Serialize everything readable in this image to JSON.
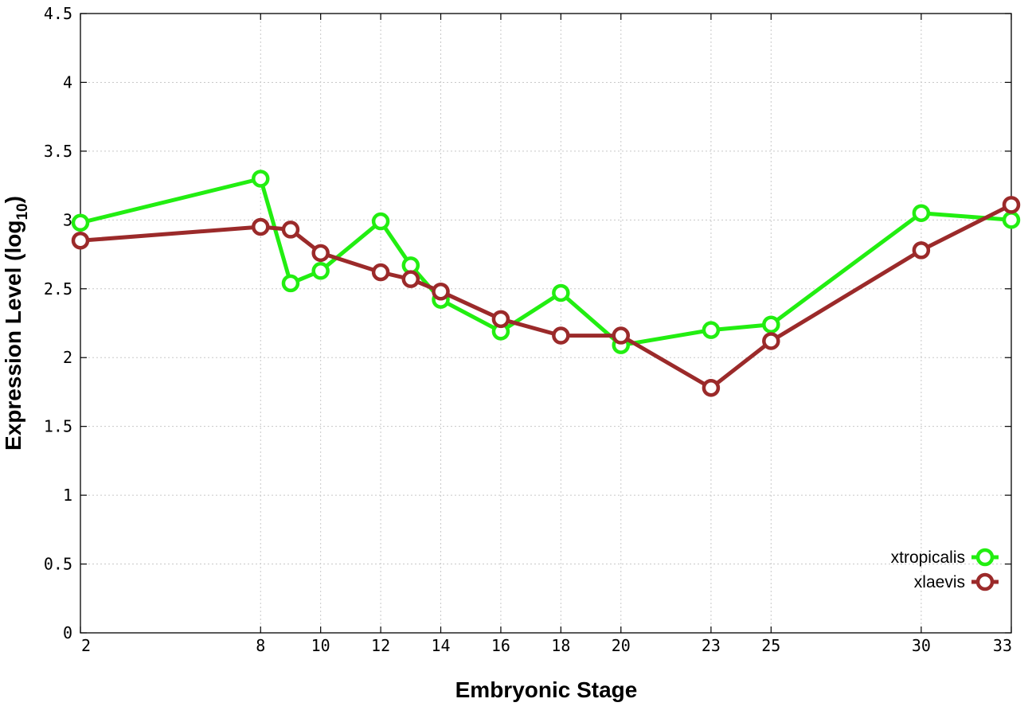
{
  "chart_data": {
    "type": "line",
    "xlabel": "Embryonic Stage",
    "ylabel_main": "Expression Level (log",
    "ylabel_sub": "10",
    "ylabel_close": ")",
    "xlim": [
      2,
      33
    ],
    "ylim": [
      0,
      4.5
    ],
    "x_ticks": [
      2,
      8,
      10,
      12,
      14,
      16,
      18,
      20,
      23,
      25,
      30,
      33
    ],
    "y_ticks": [
      0,
      0.5,
      1,
      1.5,
      2,
      2.5,
      3,
      3.5,
      4,
      4.5
    ],
    "y_tick_labels": [
      "0",
      "0.5",
      "1",
      "1.5",
      "2",
      "2.5",
      "3",
      "3.5",
      "4",
      "4.5"
    ],
    "grid": true,
    "legend_position": "bottom-right",
    "series": [
      {
        "name": "xtropicalis",
        "color": "#22ee11",
        "x": [
          2,
          8,
          9,
          10,
          12,
          13,
          14,
          16,
          18,
          20,
          23,
          25,
          30,
          33
        ],
        "y": [
          2.98,
          3.3,
          2.54,
          2.63,
          2.99,
          2.67,
          2.42,
          2.19,
          2.47,
          2.09,
          2.2,
          2.24,
          3.05,
          3.0
        ]
      },
      {
        "name": "xlaevis",
        "color": "#9b2a2a",
        "x": [
          2,
          8,
          9,
          10,
          12,
          13,
          14,
          16,
          18,
          20,
          23,
          25,
          30,
          33
        ],
        "y": [
          2.85,
          2.95,
          2.93,
          2.76,
          2.62,
          2.57,
          2.48,
          2.28,
          2.16,
          2.16,
          1.78,
          2.12,
          2.78,
          3.11
        ]
      }
    ]
  }
}
